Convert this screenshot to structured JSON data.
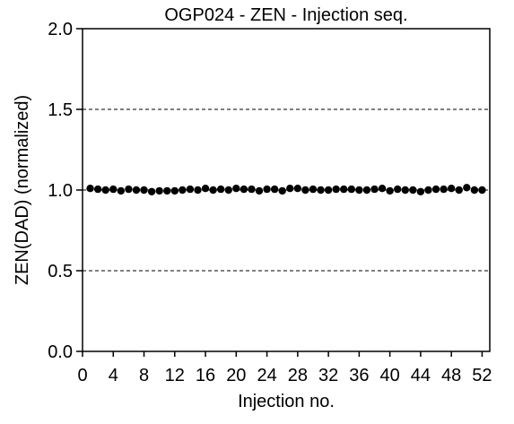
{
  "chart_data": {
    "type": "scatter",
    "title": "OGP024 - ZEN - Injection seq.",
    "xlabel": "Injection no.",
    "ylabel": "ZEN(DAD) (normalized)",
    "xlim": [
      0,
      53
    ],
    "ylim": [
      0.0,
      2.0
    ],
    "xticks": [
      0,
      4,
      8,
      12,
      16,
      20,
      24,
      28,
      32,
      36,
      40,
      44,
      48,
      52
    ],
    "xtick_labels": [
      "0",
      "4",
      "8",
      "12",
      "16",
      "20",
      "24",
      "28",
      "32",
      "36",
      "40",
      "44",
      "48",
      "52"
    ],
    "yticks": [
      0.0,
      0.5,
      1.0,
      1.5,
      2.0
    ],
    "ytick_labels": [
      "0.0",
      "0.5",
      "1.0",
      "1.5",
      "2.0"
    ],
    "grid": "horizontal dashed at 0.5, 1.0, 1.5",
    "legend": "none",
    "marker_color": "#000000",
    "series": [
      {
        "x": [
          1,
          2,
          3,
          4,
          5,
          6,
          7,
          8,
          9,
          10,
          11,
          12,
          13,
          14,
          15,
          16,
          17,
          18,
          19,
          20,
          21,
          22,
          23,
          24,
          25,
          26,
          27,
          28,
          29,
          30,
          31,
          32,
          33,
          34,
          35,
          36,
          37,
          38,
          39,
          40,
          41,
          42,
          43,
          44,
          45,
          46,
          47,
          48,
          49,
          50,
          51,
          52
        ],
        "y": [
          1.01,
          1.005,
          1.0,
          1.005,
          0.995,
          1.005,
          1.0,
          1.0,
          0.99,
          0.995,
          0.995,
          0.995,
          1.0,
          1.005,
          1.0,
          1.01,
          1.0,
          1.005,
          1.0,
          1.01,
          1.005,
          1.005,
          0.995,
          1.005,
          1.005,
          0.995,
          1.01,
          1.01,
          1.0,
          1.005,
          1.0,
          1.0,
          1.005,
          1.005,
          1.005,
          1.0,
          1.0,
          1.005,
          1.01,
          0.995,
          1.005,
          1.0,
          1.0,
          0.99,
          1.0,
          1.005,
          1.005,
          1.01,
          1.0,
          1.015,
          1.0,
          1.0
        ]
      }
    ]
  }
}
